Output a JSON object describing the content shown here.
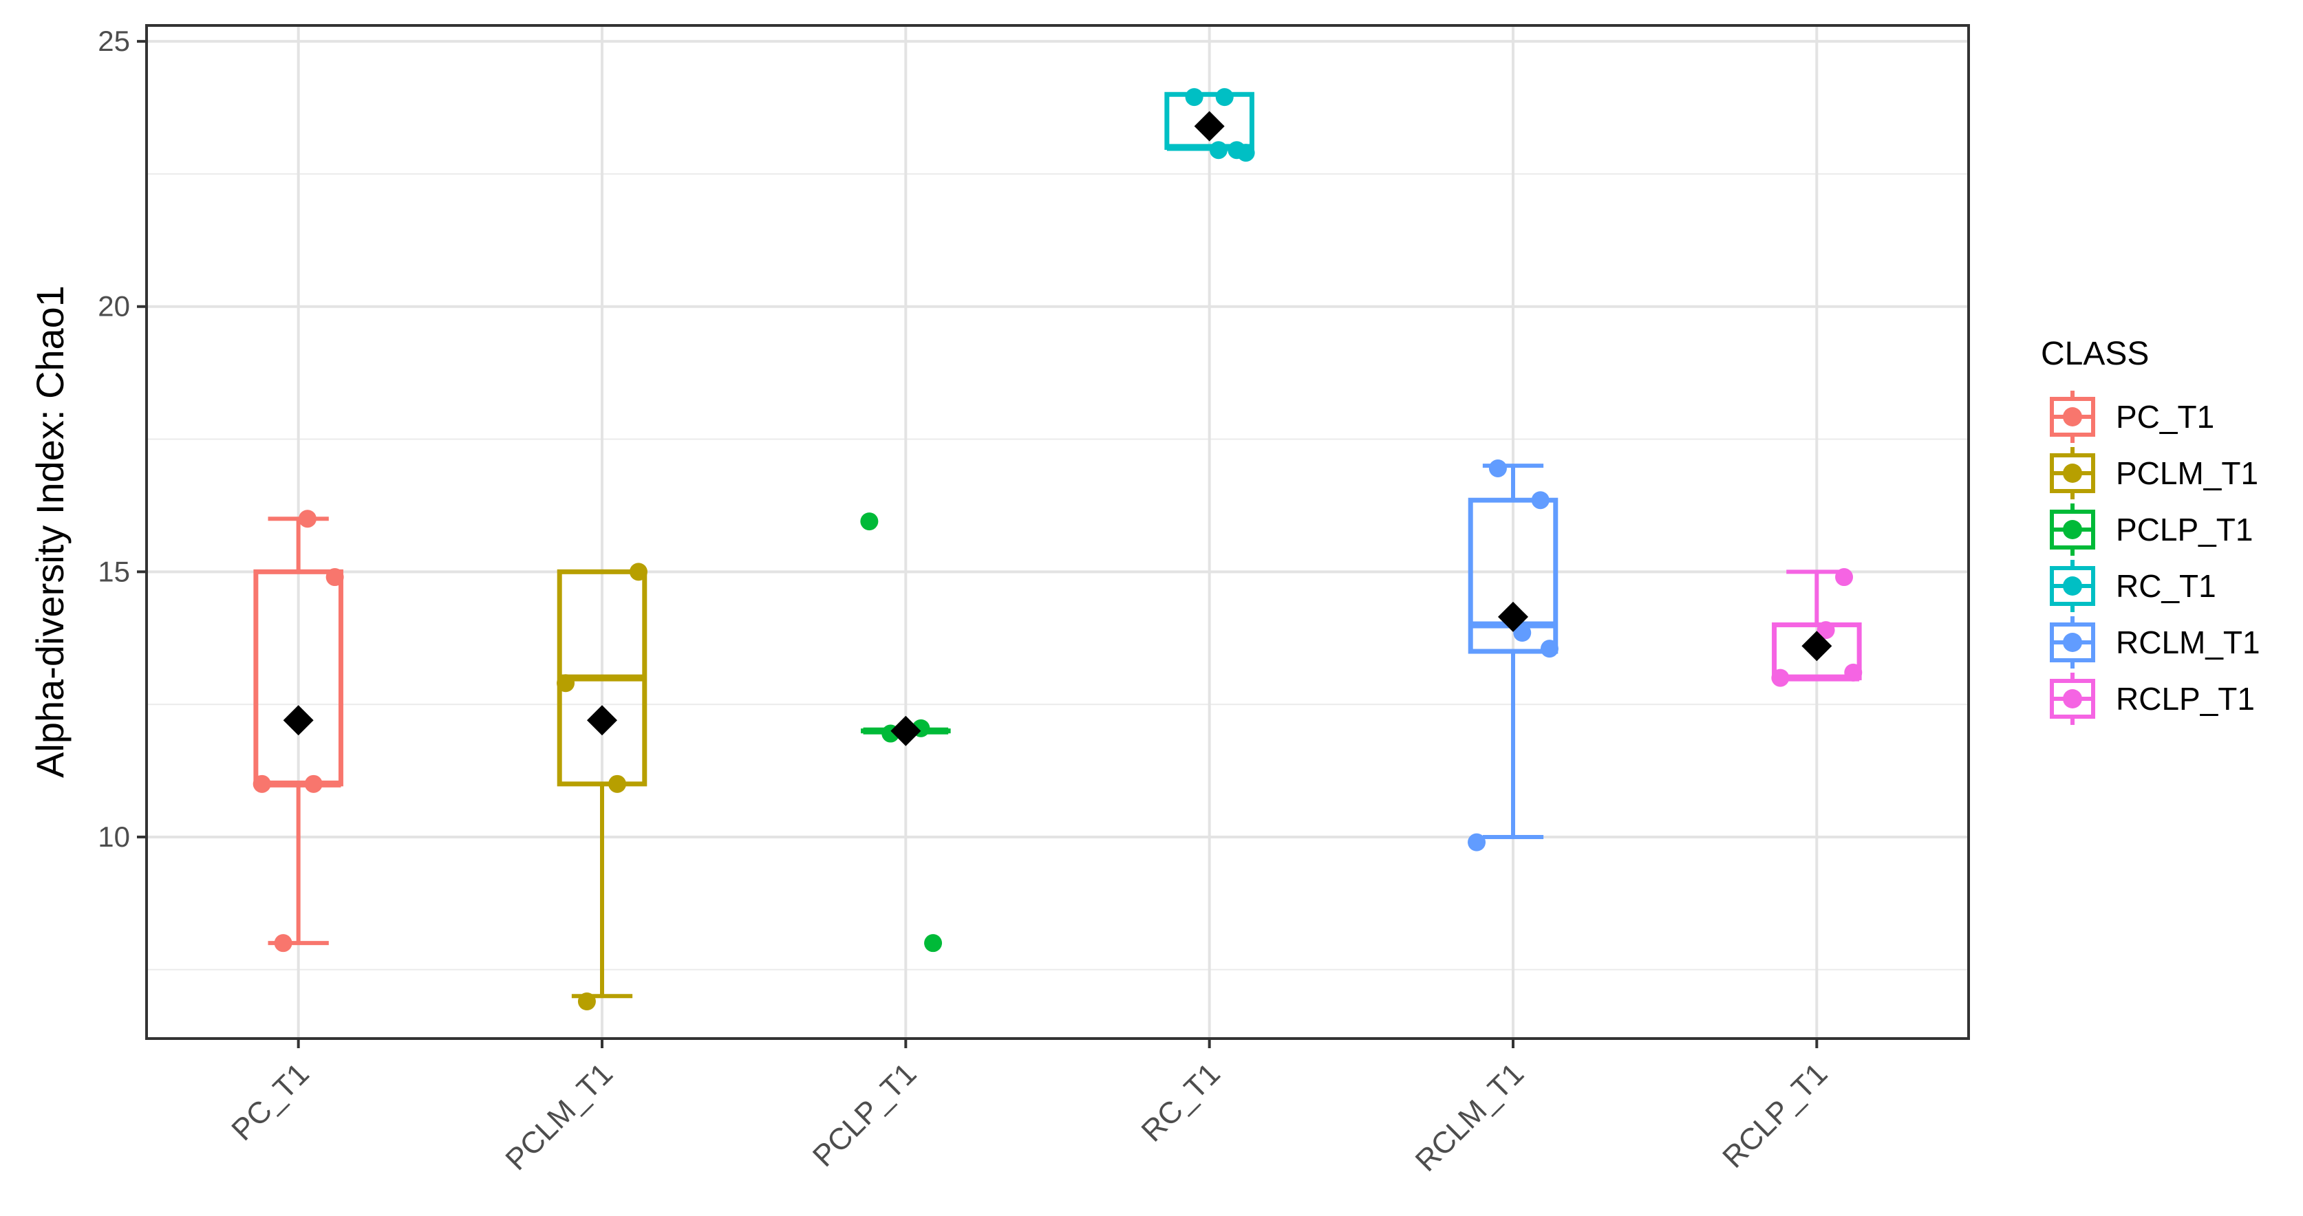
{
  "chart_data": {
    "type": "box",
    "ylabel": "Alpha-diversity Index: Chao1",
    "xlabel": "",
    "ylim": [
      6.2,
      25.3
    ],
    "yticks": [
      10,
      15,
      20,
      25
    ],
    "grid": true,
    "legend": {
      "title": "CLASS",
      "placement": "right"
    },
    "categories": [
      "PC_T1",
      "PCLM_T1",
      "PCLP_T1",
      "RC_T1",
      "RCLM_T1",
      "RCLP_T1"
    ],
    "series": [
      {
        "name": "PC_T1",
        "color": "#F8766D",
        "box": {
          "min": 8,
          "q1": 11,
          "median": 11,
          "q3": 15,
          "max": 16
        },
        "mean": 12.2,
        "points": [
          16,
          14.9,
          11,
          11,
          8
        ]
      },
      {
        "name": "PCLM_T1",
        "color": "#B79F00",
        "box": {
          "min": 7,
          "q1": 11,
          "median": 13,
          "q3": 15,
          "max": 15
        },
        "mean": 12.2,
        "points": [
          15,
          12.9,
          11,
          6.9
        ]
      },
      {
        "name": "PCLP_T1",
        "color": "#00BA38",
        "box": {
          "min": 12,
          "q1": 12,
          "median": 12,
          "q3": 12,
          "max": 12
        },
        "mean": 12,
        "points": [
          15.95,
          12.05,
          11.95,
          8
        ]
      },
      {
        "name": "RC_T1",
        "color": "#00BFC4",
        "box": {
          "min": 23,
          "q1": 23,
          "median": 23,
          "q3": 24,
          "max": 24
        },
        "mean": 23.4,
        "points": [
          23.95,
          23.95,
          22.95,
          22.95,
          22.9
        ]
      },
      {
        "name": "RCLM_T1",
        "color": "#619CFF",
        "box": {
          "min": 10,
          "q1": 13.5,
          "median": 14,
          "q3": 16.35,
          "max": 17
        },
        "mean": 14.15,
        "points": [
          16.95,
          16.35,
          13.85,
          13.55,
          9.9
        ]
      },
      {
        "name": "RCLP_T1",
        "color": "#F564E3",
        "box": {
          "min": 13,
          "q1": 13,
          "median": 13,
          "q3": 14,
          "max": 15
        },
        "mean": 13.6,
        "points": [
          14.9,
          13.9,
          13.1,
          13
        ]
      }
    ]
  }
}
